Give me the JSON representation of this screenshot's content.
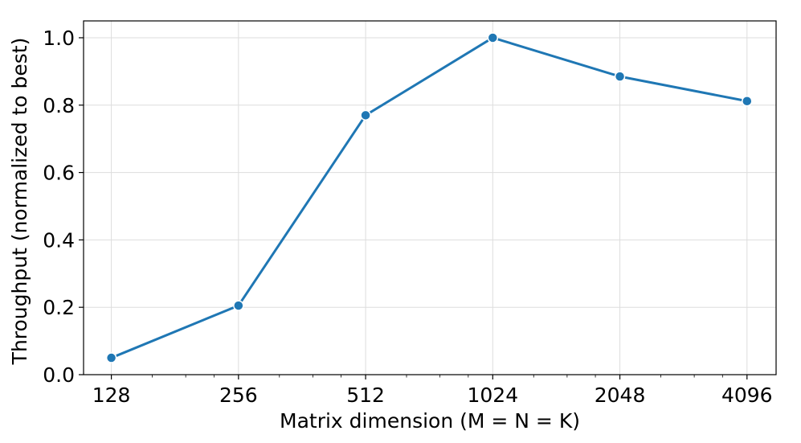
{
  "chart_data": {
    "type": "line",
    "xlabel": "Matrix dimension (M = N = K)",
    "ylabel": "Throughput (normalized to best)",
    "x_scale": "log2",
    "x": [
      128,
      256,
      512,
      1024,
      2048,
      4096
    ],
    "x_tick_labels": [
      "128",
      "256",
      "512",
      "1024",
      "2048",
      "4096"
    ],
    "series": [
      {
        "values": [
          0.05,
          0.205,
          0.77,
          1.0,
          0.885,
          0.812
        ],
        "color": "#1f77b4"
      }
    ],
    "y_ticks": [
      0.0,
      0.2,
      0.4,
      0.6,
      0.8,
      1.0
    ],
    "y_tick_labels": [
      "0.0",
      "0.2",
      "0.4",
      "0.6",
      "0.8",
      "1.0"
    ],
    "ylim": [
      0.0,
      1.05
    ],
    "xlim": [
      110,
      4800
    ],
    "grid": true,
    "legend": "none"
  }
}
